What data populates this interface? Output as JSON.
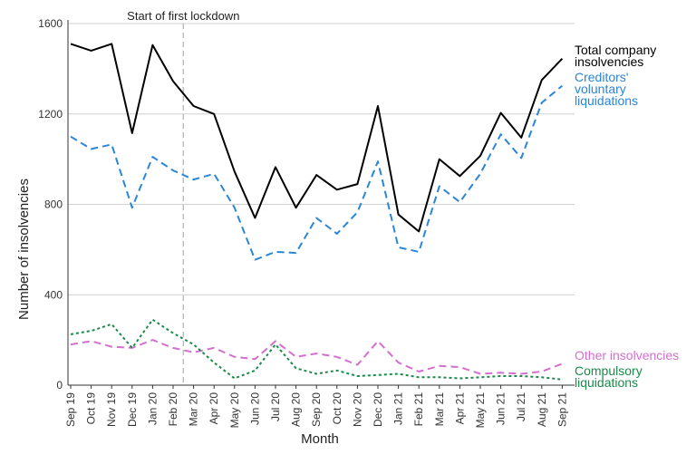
{
  "chart_data": {
    "type": "line",
    "xlabel": "Month",
    "ylabel": "Number of insolvencies",
    "ylim": [
      0,
      1600
    ],
    "yticks": [
      0,
      400,
      800,
      1200,
      1600
    ],
    "grid": "horizontal",
    "legend": "right end labels",
    "categories": [
      "Sep 19",
      "Oct 19",
      "Nov 19",
      "Dec 19",
      "Jan 20",
      "Feb 20",
      "Mar 20",
      "Apr 20",
      "May 20",
      "Jun 20",
      "Jul 20",
      "Aug 20",
      "Sep 20",
      "Oct 20",
      "Nov 20",
      "Dec 20",
      "Jan 21",
      "Feb 21",
      "Mar 21",
      "Apr 21",
      "May 21",
      "Jun 21",
      "Jul 21",
      "Aug 21",
      "Sep 21"
    ],
    "annotation": {
      "label": "Start of first lockdown",
      "at": 5.5
    },
    "series": [
      {
        "name": "Total company insolvencies",
        "label_lines": [
          "Total company",
          "insolvencies"
        ],
        "color": "#000000",
        "style": "solid",
        "values": [
          1510,
          1480,
          1510,
          1115,
          1505,
          1345,
          1235,
          1200,
          945,
          740,
          965,
          785,
          930,
          865,
          890,
          1235,
          755,
          680,
          1000,
          925,
          1015,
          1205,
          1095,
          1350,
          1445
        ]
      },
      {
        "name": "Creditors' voluntary liquidations",
        "label_lines": [
          "Creditors'",
          "voluntary",
          "liquidations"
        ],
        "color": "#2a86d8",
        "style": "dashed",
        "values": [
          1100,
          1045,
          1065,
          785,
          1010,
          950,
          910,
          935,
          785,
          555,
          590,
          585,
          740,
          670,
          765,
          990,
          610,
          590,
          880,
          810,
          935,
          1110,
          1005,
          1250,
          1325
        ]
      },
      {
        "name": "Other insolvencies",
        "label_lines": [
          "Other insolvencies"
        ],
        "color": "#d46fd0",
        "style": "dashed",
        "values": [
          180,
          195,
          170,
          165,
          200,
          165,
          145,
          165,
          125,
          115,
          195,
          125,
          140,
          125,
          90,
          195,
          100,
          60,
          85,
          80,
          50,
          55,
          50,
          60,
          95
        ]
      },
      {
        "name": "Compulsory liquidations",
        "label_lines": [
          "Compulsory",
          "liquidations"
        ],
        "color": "#1a8a4a",
        "style": "dotted",
        "values": [
          225,
          240,
          270,
          165,
          290,
          230,
          180,
          100,
          30,
          65,
          180,
          75,
          50,
          65,
          40,
          45,
          50,
          35,
          35,
          30,
          35,
          40,
          40,
          35,
          25
        ]
      }
    ]
  }
}
